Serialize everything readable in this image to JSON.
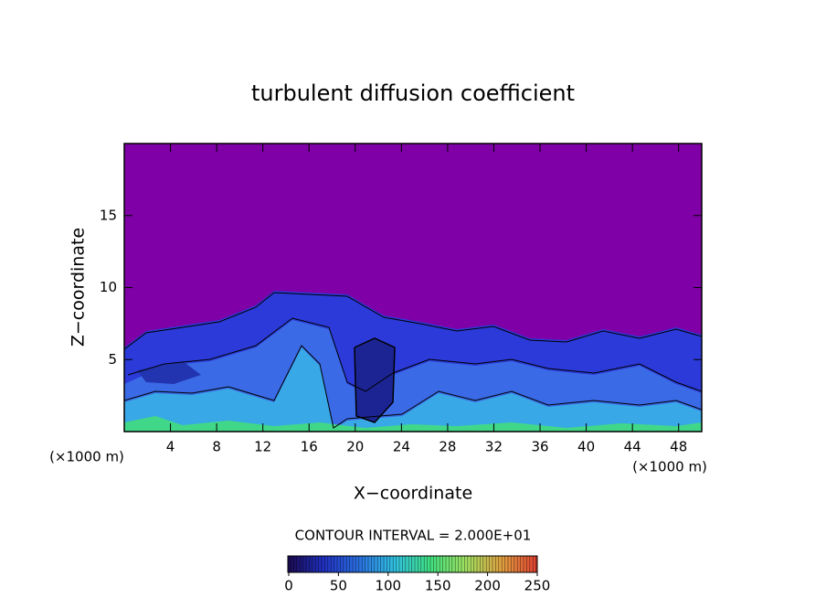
{
  "chart_data": {
    "type": "contour",
    "title": "turbulent diffusion coefficient",
    "xlabel": "X−coordinate",
    "ylabel": "Z−coordinate",
    "x_unit_label": "(×1000 m)",
    "annotation": "CONTOUR INTERVAL = 2.000E+01",
    "xlim": [
      0,
      50
    ],
    "xticks": [
      4,
      8,
      12,
      16,
      20,
      24,
      28,
      32,
      36,
      40,
      44,
      48
    ],
    "ylim": [
      0,
      20
    ],
    "yticks": [
      5,
      10,
      15
    ],
    "background_color": "#7f00a6",
    "colorbar": {
      "lim": [
        0,
        250
      ],
      "ticks": [
        0,
        50,
        100,
        150,
        200,
        250
      ],
      "colormap": [
        "#1a0a50",
        "#2030c0",
        "#2a70e0",
        "#30c0e0",
        "#40e080",
        "#a0e060",
        "#e0a040",
        "#e04030"
      ]
    }
  }
}
